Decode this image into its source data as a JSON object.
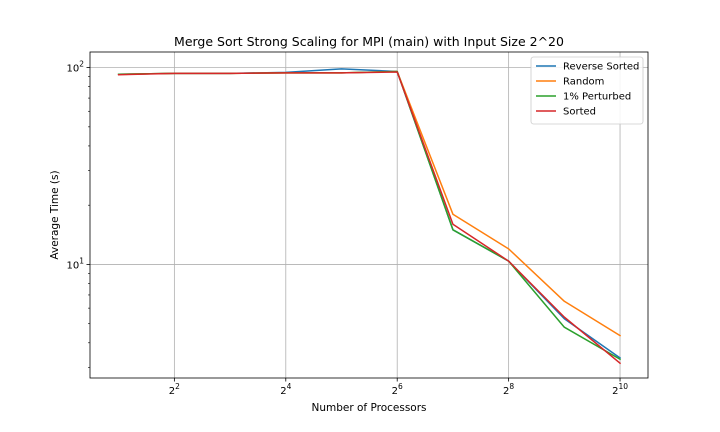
{
  "chart_data": {
    "type": "line",
    "title": "Merge Sort Strong Scaling for MPI (main) with Input Size 2^20",
    "xlabel": "Number of Processors",
    "ylabel": "Average Time (s)",
    "x_scale": "log2",
    "y_scale": "log10",
    "x": [
      2,
      4,
      8,
      16,
      32,
      64,
      128,
      256,
      512,
      1024
    ],
    "xlim": [
      1.4,
      1450
    ],
    "ylim": [
      2.65,
      120
    ],
    "x_ticks": [
      {
        "value": 4,
        "base": "2",
        "exp": "2"
      },
      {
        "value": 16,
        "base": "2",
        "exp": "4"
      },
      {
        "value": 64,
        "base": "2",
        "exp": "6"
      },
      {
        "value": 256,
        "base": "2",
        "exp": "8"
      },
      {
        "value": 1024,
        "base": "2",
        "exp": "10"
      }
    ],
    "y_ticks": [
      {
        "value": 10,
        "base": "10",
        "exp": "1"
      },
      {
        "value": 100,
        "base": "10",
        "exp": "2"
      }
    ],
    "grid": true,
    "legend_position": "top-right",
    "series": [
      {
        "name": "Reverse Sorted",
        "color": "#1f77b4",
        "values": [
          92.5,
          93.5,
          93.5,
          94.5,
          98.5,
          95.5,
          15.0,
          10.4,
          5.3,
          3.35
        ]
      },
      {
        "name": "Random",
        "color": "#ff7f0e",
        "values": [
          92.5,
          93.5,
          93.5,
          94.0,
          94.0,
          95.5,
          18.0,
          12.0,
          6.5,
          4.35
        ]
      },
      {
        "name": "1% Perturbed",
        "color": "#2ca02c",
        "values": [
          92.5,
          93.5,
          93.5,
          94.0,
          94.0,
          95.5,
          15.0,
          10.4,
          4.8,
          3.3
        ]
      },
      {
        "name": "Sorted",
        "color": "#d62728",
        "values": [
          92.0,
          93.5,
          93.5,
          94.0,
          94.0,
          95.0,
          16.0,
          10.4,
          5.4,
          3.15
        ]
      }
    ]
  }
}
